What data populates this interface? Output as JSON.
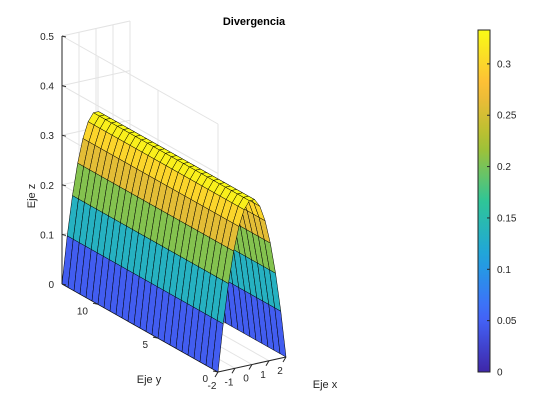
{
  "chart_data": {
    "type": "surface",
    "title": "Divergencia",
    "xlabel": "Eje x",
    "ylabel": "Eje y",
    "zlabel": "Eje z",
    "colormap": "parula",
    "colormap_stops": [
      "#3e26a8",
      "#4367fd",
      "#1fa3df",
      "#2fc597",
      "#a9c12f",
      "#fdbb39",
      "#f9fb15"
    ],
    "grid": true,
    "x_range": [
      -2,
      2
    ],
    "y_range": [
      0,
      13
    ],
    "zlim": [
      0,
      0.5
    ],
    "x_ticks": [
      -2,
      -1,
      0,
      1,
      2
    ],
    "x_tick_labels": [
      "-2",
      "-1",
      "0",
      "1",
      "2"
    ],
    "y_ticks": [
      0,
      5,
      10
    ],
    "y_tick_labels": [
      "0",
      "5",
      "10"
    ],
    "z_ticks": [
      0,
      0.1,
      0.2,
      0.3,
      0.4,
      0.5
    ],
    "z_tick_labels": [
      "0",
      "0.1",
      "0.2",
      "0.3",
      "0.4",
      "0.5"
    ],
    "surface_function": "z = (4 - x^2) / 12",
    "surface_x_grid_count": 13,
    "surface_y_grid_count": 26,
    "colorbar": {
      "limits": [
        0,
        0.333
      ],
      "ticks": [
        0,
        0.05,
        0.1,
        0.15,
        0.2,
        0.25,
        0.3
      ],
      "tick_labels": [
        "0",
        "0.05",
        "0.1",
        "0.15",
        "0.2",
        "0.25",
        "0.3"
      ]
    }
  }
}
